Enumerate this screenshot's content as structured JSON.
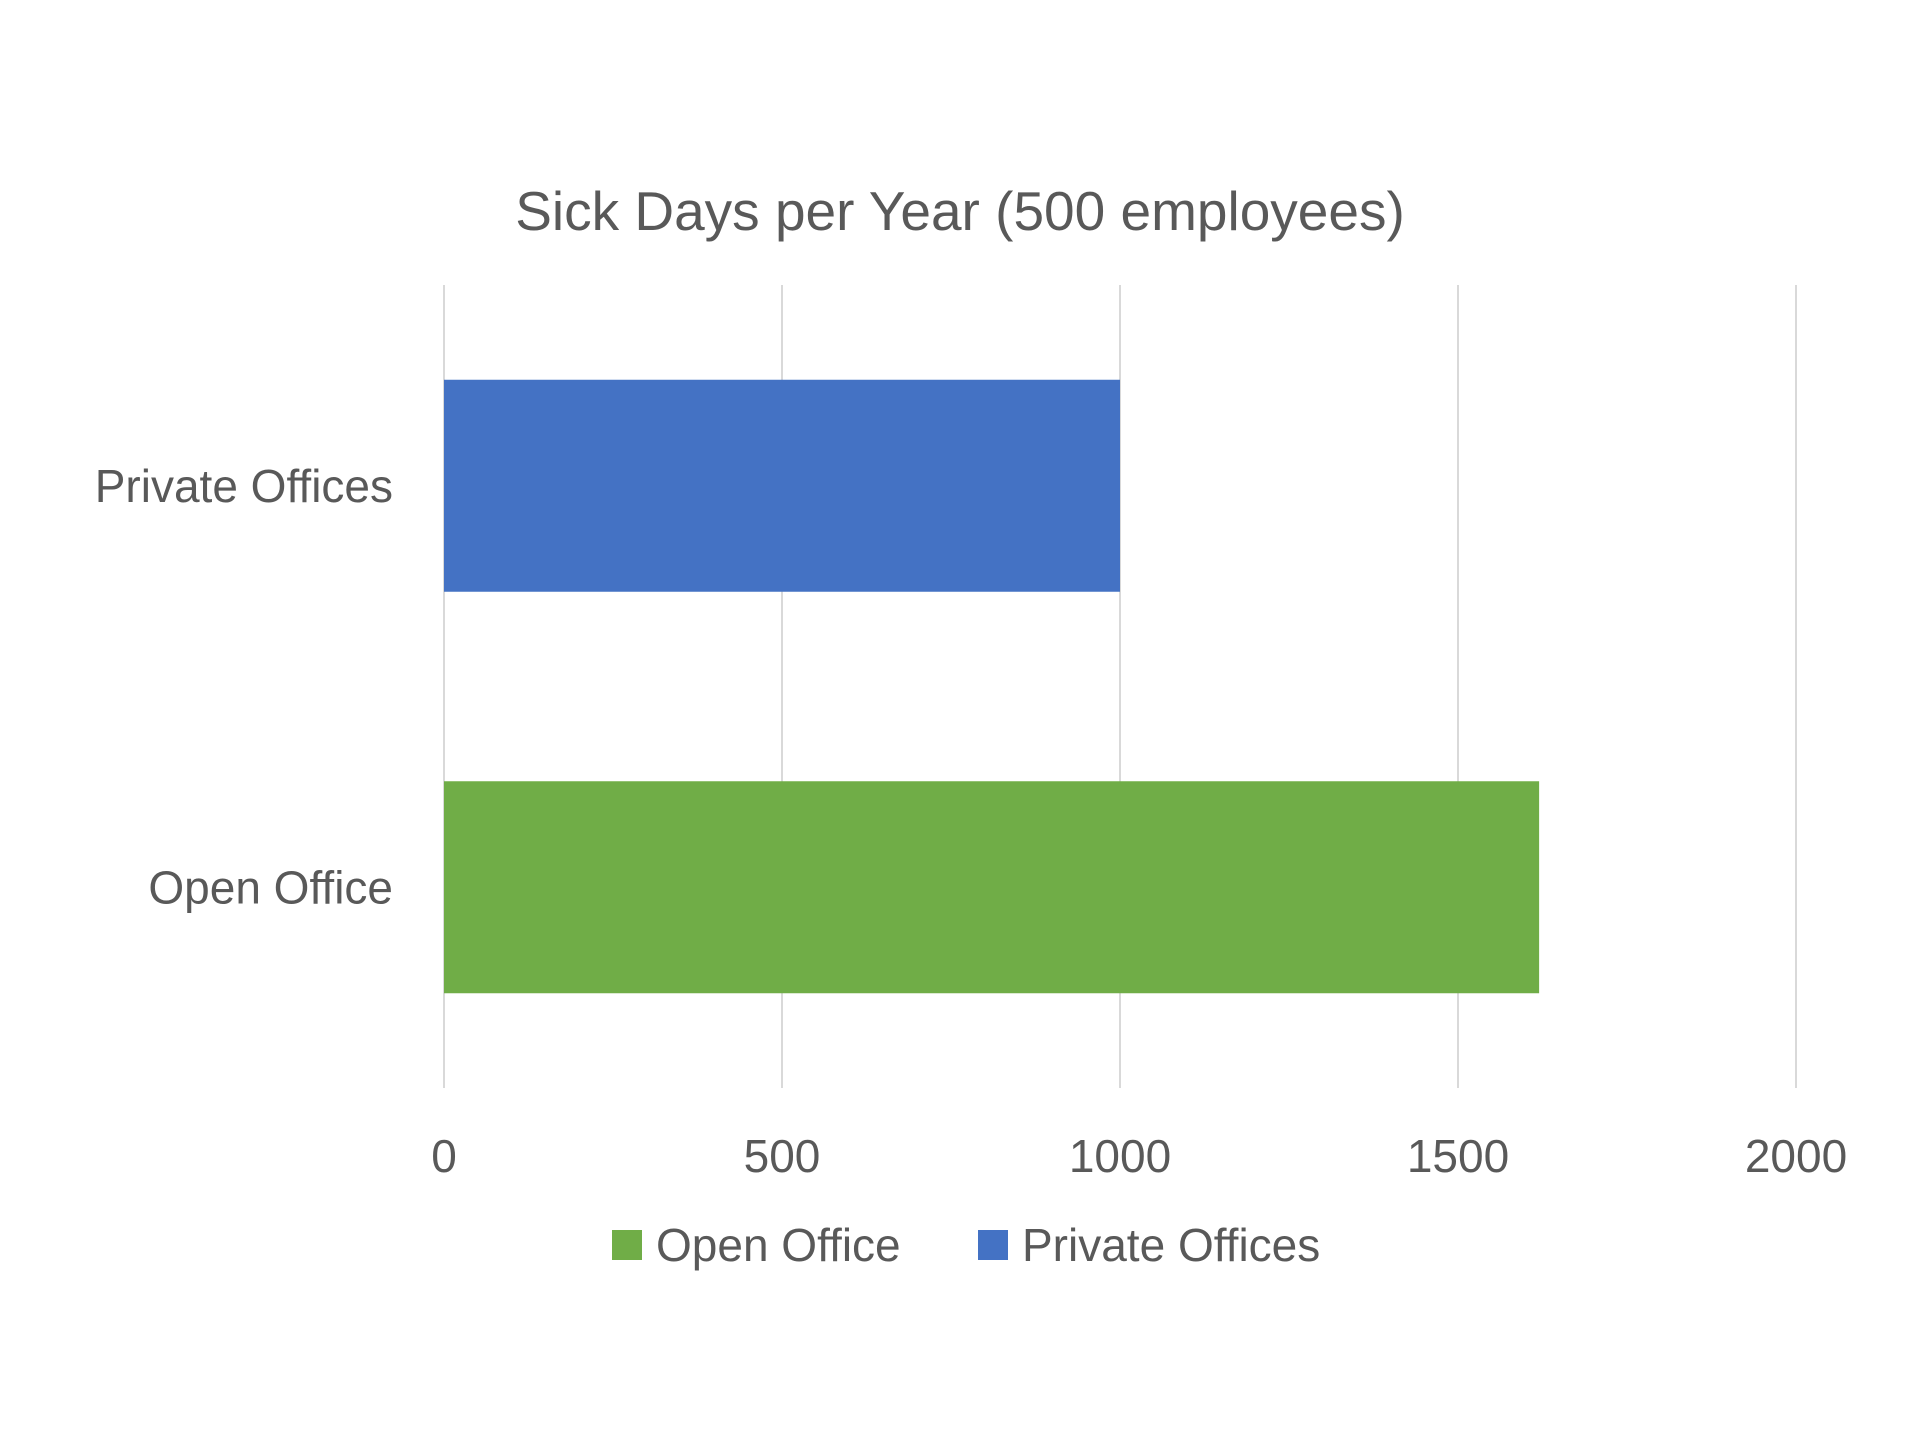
{
  "chart_data": {
    "type": "bar",
    "orientation": "horizontal",
    "title": "Sick Days per Year (500 employees)",
    "xlabel": "",
    "ylabel": "",
    "categories": [
      "Private Offices",
      "Open Office"
    ],
    "series": [
      {
        "name": "Open Office",
        "color": "#70AD47",
        "values": [
          null,
          1620
        ]
      },
      {
        "name": "Private Offices",
        "color": "#4472C4",
        "values": [
          1000,
          null
        ]
      }
    ],
    "xlim": [
      0,
      2000
    ],
    "x_ticks": [
      "0",
      "500",
      "1000",
      "1500",
      "2000"
    ],
    "grid": true,
    "legend_position": "bottom"
  }
}
